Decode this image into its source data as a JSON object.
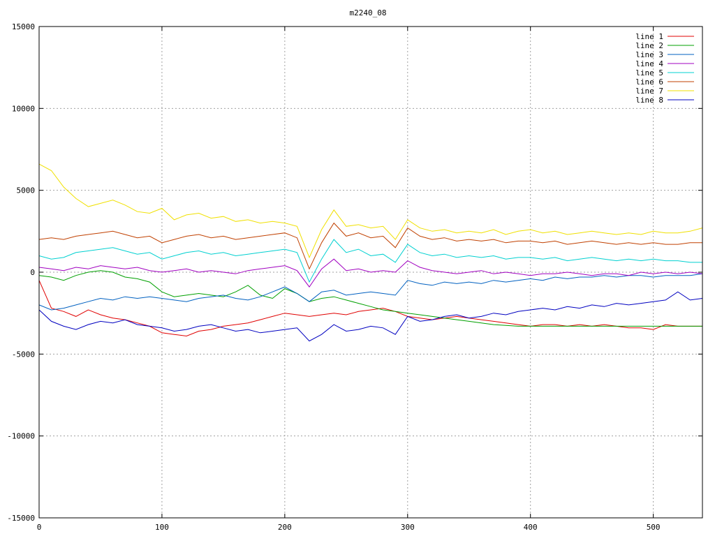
{
  "chart_data": {
    "type": "line",
    "title": "m2240_08",
    "xlabel": "",
    "ylabel": "",
    "xlim": [
      0,
      540
    ],
    "ylim": [
      -15000,
      15000
    ],
    "xticks": [
      0,
      100,
      200,
      300,
      400,
      500
    ],
    "xtick_labels": [
      "0",
      "100",
      "200",
      "300",
      "400",
      "500"
    ],
    "yticks": [
      -15000,
      -10000,
      -5000,
      0,
      5000,
      10000,
      15000
    ],
    "ytick_labels": [
      "-15000",
      "-10000",
      "-5000",
      "0",
      "5000",
      "10000",
      "15000"
    ],
    "grid": true,
    "legend_position": "top-right",
    "x": [
      0,
      10,
      20,
      30,
      40,
      50,
      60,
      70,
      80,
      90,
      100,
      110,
      120,
      130,
      140,
      150,
      160,
      170,
      180,
      190,
      200,
      210,
      220,
      230,
      240,
      250,
      260,
      270,
      280,
      290,
      300,
      310,
      320,
      330,
      340,
      350,
      360,
      370,
      380,
      390,
      400,
      410,
      420,
      430,
      440,
      450,
      460,
      470,
      480,
      490,
      500,
      510,
      520,
      530,
      540
    ],
    "series": [
      {
        "name": "line 1",
        "color": "#e00000",
        "values": [
          -500,
          -2200,
          -2400,
          -2700,
          -2300,
          -2600,
          -2800,
          -2900,
          -3100,
          -3300,
          -3700,
          -3800,
          -3900,
          -3600,
          -3500,
          -3300,
          -3200,
          -3100,
          -2900,
          -2700,
          -2500,
          -2600,
          -2700,
          -2600,
          -2500,
          -2600,
          -2400,
          -2300,
          -2200,
          -2400,
          -2700,
          -2800,
          -2900,
          -2800,
          -2700,
          -2800,
          -2900,
          -3000,
          -3100,
          -3200,
          -3300,
          -3200,
          -3200,
          -3300,
          -3200,
          -3300,
          -3200,
          -3300,
          -3400,
          -3400,
          -3500,
          -3200,
          -3300,
          -3300,
          -3300
        ]
      },
      {
        "name": "line 2",
        "color": "#00a000",
        "values": [
          -200,
          -300,
          -500,
          -200,
          0,
          100,
          0,
          -300,
          -400,
          -600,
          -1200,
          -1500,
          -1400,
          -1300,
          -1400,
          -1500,
          -1200,
          -800,
          -1400,
          -1600,
          -1000,
          -1300,
          -1800,
          -1600,
          -1500,
          -1700,
          -1900,
          -2100,
          -2300,
          -2400,
          -2500,
          -2600,
          -2700,
          -2800,
          -2900,
          -3000,
          -3100,
          -3200,
          -3250,
          -3300,
          -3300,
          -3300,
          -3300,
          -3300,
          -3300,
          -3300,
          -3300,
          -3300,
          -3300,
          -3300,
          -3300,
          -3300,
          -3300,
          -3300,
          -3300
        ]
      },
      {
        "name": "line 3",
        "color": "#0060c0",
        "values": [
          -2000,
          -2300,
          -2200,
          -2000,
          -1800,
          -1600,
          -1700,
          -1500,
          -1600,
          -1500,
          -1600,
          -1700,
          -1800,
          -1600,
          -1500,
          -1400,
          -1600,
          -1700,
          -1500,
          -1200,
          -900,
          -1300,
          -1800,
          -1200,
          -1100,
          -1400,
          -1300,
          -1200,
          -1300,
          -1400,
          -500,
          -700,
          -800,
          -600,
          -700,
          -600,
          -700,
          -500,
          -600,
          -500,
          -400,
          -500,
          -300,
          -400,
          -300,
          -300,
          -200,
          -300,
          -200,
          -200,
          -300,
          -200,
          -200,
          -200,
          -100
        ]
      },
      {
        "name": "line 4",
        "color": "#a000c0",
        "values": [
          300,
          200,
          100,
          300,
          200,
          400,
          300,
          200,
          300,
          100,
          0,
          100,
          200,
          0,
          100,
          0,
          -100,
          100,
          200,
          300,
          400,
          100,
          -900,
          200,
          800,
          100,
          200,
          0,
          100,
          0,
          700,
          300,
          100,
          0,
          -100,
          0,
          100,
          -100,
          0,
          -100,
          -200,
          -100,
          -100,
          0,
          -100,
          -200,
          -100,
          -100,
          -200,
          0,
          -100,
          0,
          -100,
          0,
          -100
        ]
      },
      {
        "name": "line 5",
        "color": "#00d0d0",
        "values": [
          1000,
          800,
          900,
          1200,
          1300,
          1400,
          1500,
          1300,
          1100,
          1200,
          800,
          1000,
          1200,
          1300,
          1100,
          1200,
          1000,
          1100,
          1200,
          1300,
          1400,
          1200,
          -600,
          800,
          2000,
          1200,
          1400,
          1000,
          1100,
          600,
          1700,
          1200,
          1000,
          1100,
          900,
          1000,
          900,
          1000,
          800,
          900,
          900,
          800,
          900,
          700,
          800,
          900,
          800,
          700,
          800,
          700,
          800,
          700,
          700,
          600,
          600
        ]
      },
      {
        "name": "line 6",
        "color": "#c04000",
        "values": [
          2000,
          2100,
          2000,
          2200,
          2300,
          2400,
          2500,
          2300,
          2100,
          2200,
          1800,
          2000,
          2200,
          2300,
          2100,
          2200,
          2000,
          2100,
          2200,
          2300,
          2400,
          2100,
          200,
          1800,
          3000,
          2200,
          2400,
          2100,
          2200,
          1500,
          2700,
          2200,
          2000,
          2100,
          1900,
          2000,
          1900,
          2000,
          1800,
          1900,
          1900,
          1800,
          1900,
          1700,
          1800,
          1900,
          1800,
          1700,
          1800,
          1700,
          1800,
          1700,
          1700,
          1800,
          1800
        ]
      },
      {
        "name": "line 7",
        "color": "#f0e000",
        "values": [
          6600,
          6200,
          5200,
          4500,
          4000,
          4200,
          4400,
          4100,
          3700,
          3600,
          3900,
          3200,
          3500,
          3600,
          3300,
          3400,
          3100,
          3200,
          3000,
          3100,
          3000,
          2800,
          900,
          2600,
          3800,
          2800,
          2900,
          2700,
          2800,
          2000,
          3200,
          2700,
          2500,
          2600,
          2400,
          2500,
          2400,
          2600,
          2300,
          2500,
          2600,
          2400,
          2500,
          2300,
          2400,
          2500,
          2400,
          2300,
          2400,
          2300,
          2500,
          2400,
          2400,
          2500,
          2700
        ]
      },
      {
        "name": "line 8",
        "color": "#0000c0",
        "values": [
          -2300,
          -3000,
          -3300,
          -3500,
          -3200,
          -3000,
          -3100,
          -2900,
          -3200,
          -3300,
          -3400,
          -3600,
          -3500,
          -3300,
          -3200,
          -3400,
          -3600,
          -3500,
          -3700,
          -3600,
          -3500,
          -3400,
          -4200,
          -3800,
          -3200,
          -3600,
          -3500,
          -3300,
          -3400,
          -3800,
          -2700,
          -3000,
          -2900,
          -2700,
          -2600,
          -2800,
          -2700,
          -2500,
          -2600,
          -2400,
          -2300,
          -2200,
          -2300,
          -2100,
          -2200,
          -2000,
          -2100,
          -1900,
          -2000,
          -1900,
          -1800,
          -1700,
          -1200,
          -1700,
          -1600
        ]
      }
    ]
  }
}
